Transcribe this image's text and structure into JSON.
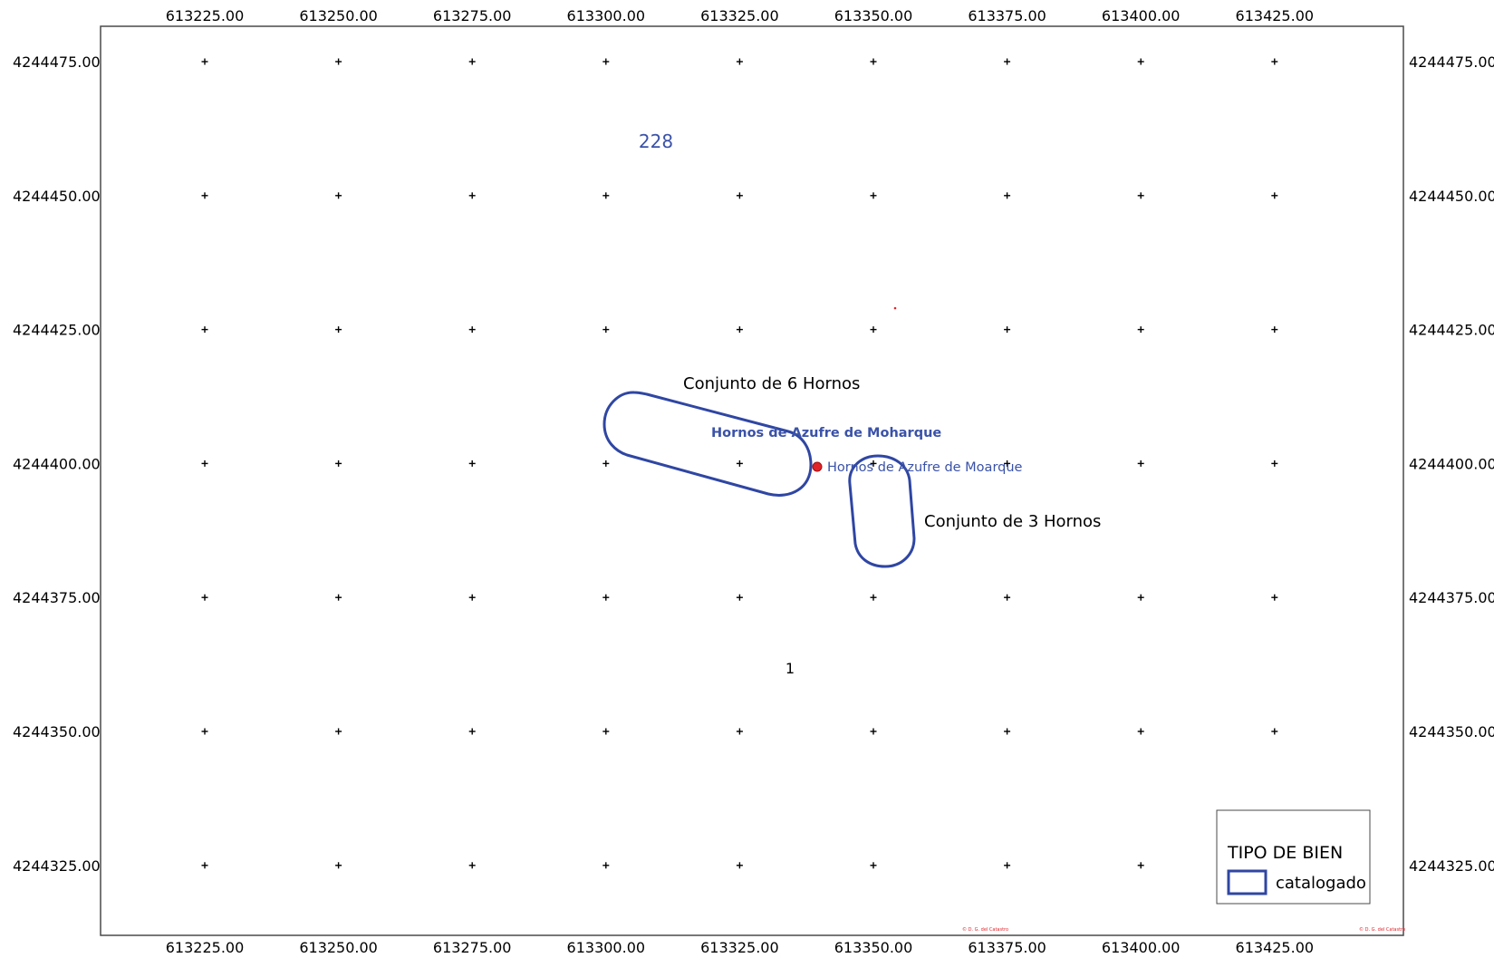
{
  "map": {
    "x_ticks": [
      "613225.00",
      "613250.00",
      "613275.00",
      "613300.00",
      "613325.00",
      "613350.00",
      "613375.00",
      "613400.00",
      "613425.00"
    ],
    "y_ticks": [
      "4244475.00",
      "4244450.00",
      "4244425.00",
      "4244400.00",
      "4244375.00",
      "4244350.00",
      "4244325.00"
    ],
    "parcel_number_top": "228",
    "parcel_number_center": "1",
    "features": {
      "six_ovens_label": "Conjunto de 6 Hornos",
      "three_ovens_label": "Conjunto de 3 Hornos",
      "site_name_bold": "Hornos de Azufre de Moharque",
      "site_point_label": "Hornos de Azufre de Moarque"
    },
    "copyright_bottom_center": "© D. G. del Catastro",
    "copyright_bottom_right": "© D. G. del Catastro"
  },
  "legend": {
    "title": "TIPO DE BIEN",
    "item_label": "catalogado"
  },
  "colors": {
    "outline_blue": "#2f46a3",
    "label_blue": "#3a52a8",
    "point_red": "#e0242a",
    "frame": "#4a4a4a"
  },
  "icons": {
    "site_point": "red-dot-icon",
    "grid_marker": "crosshair-icon"
  }
}
